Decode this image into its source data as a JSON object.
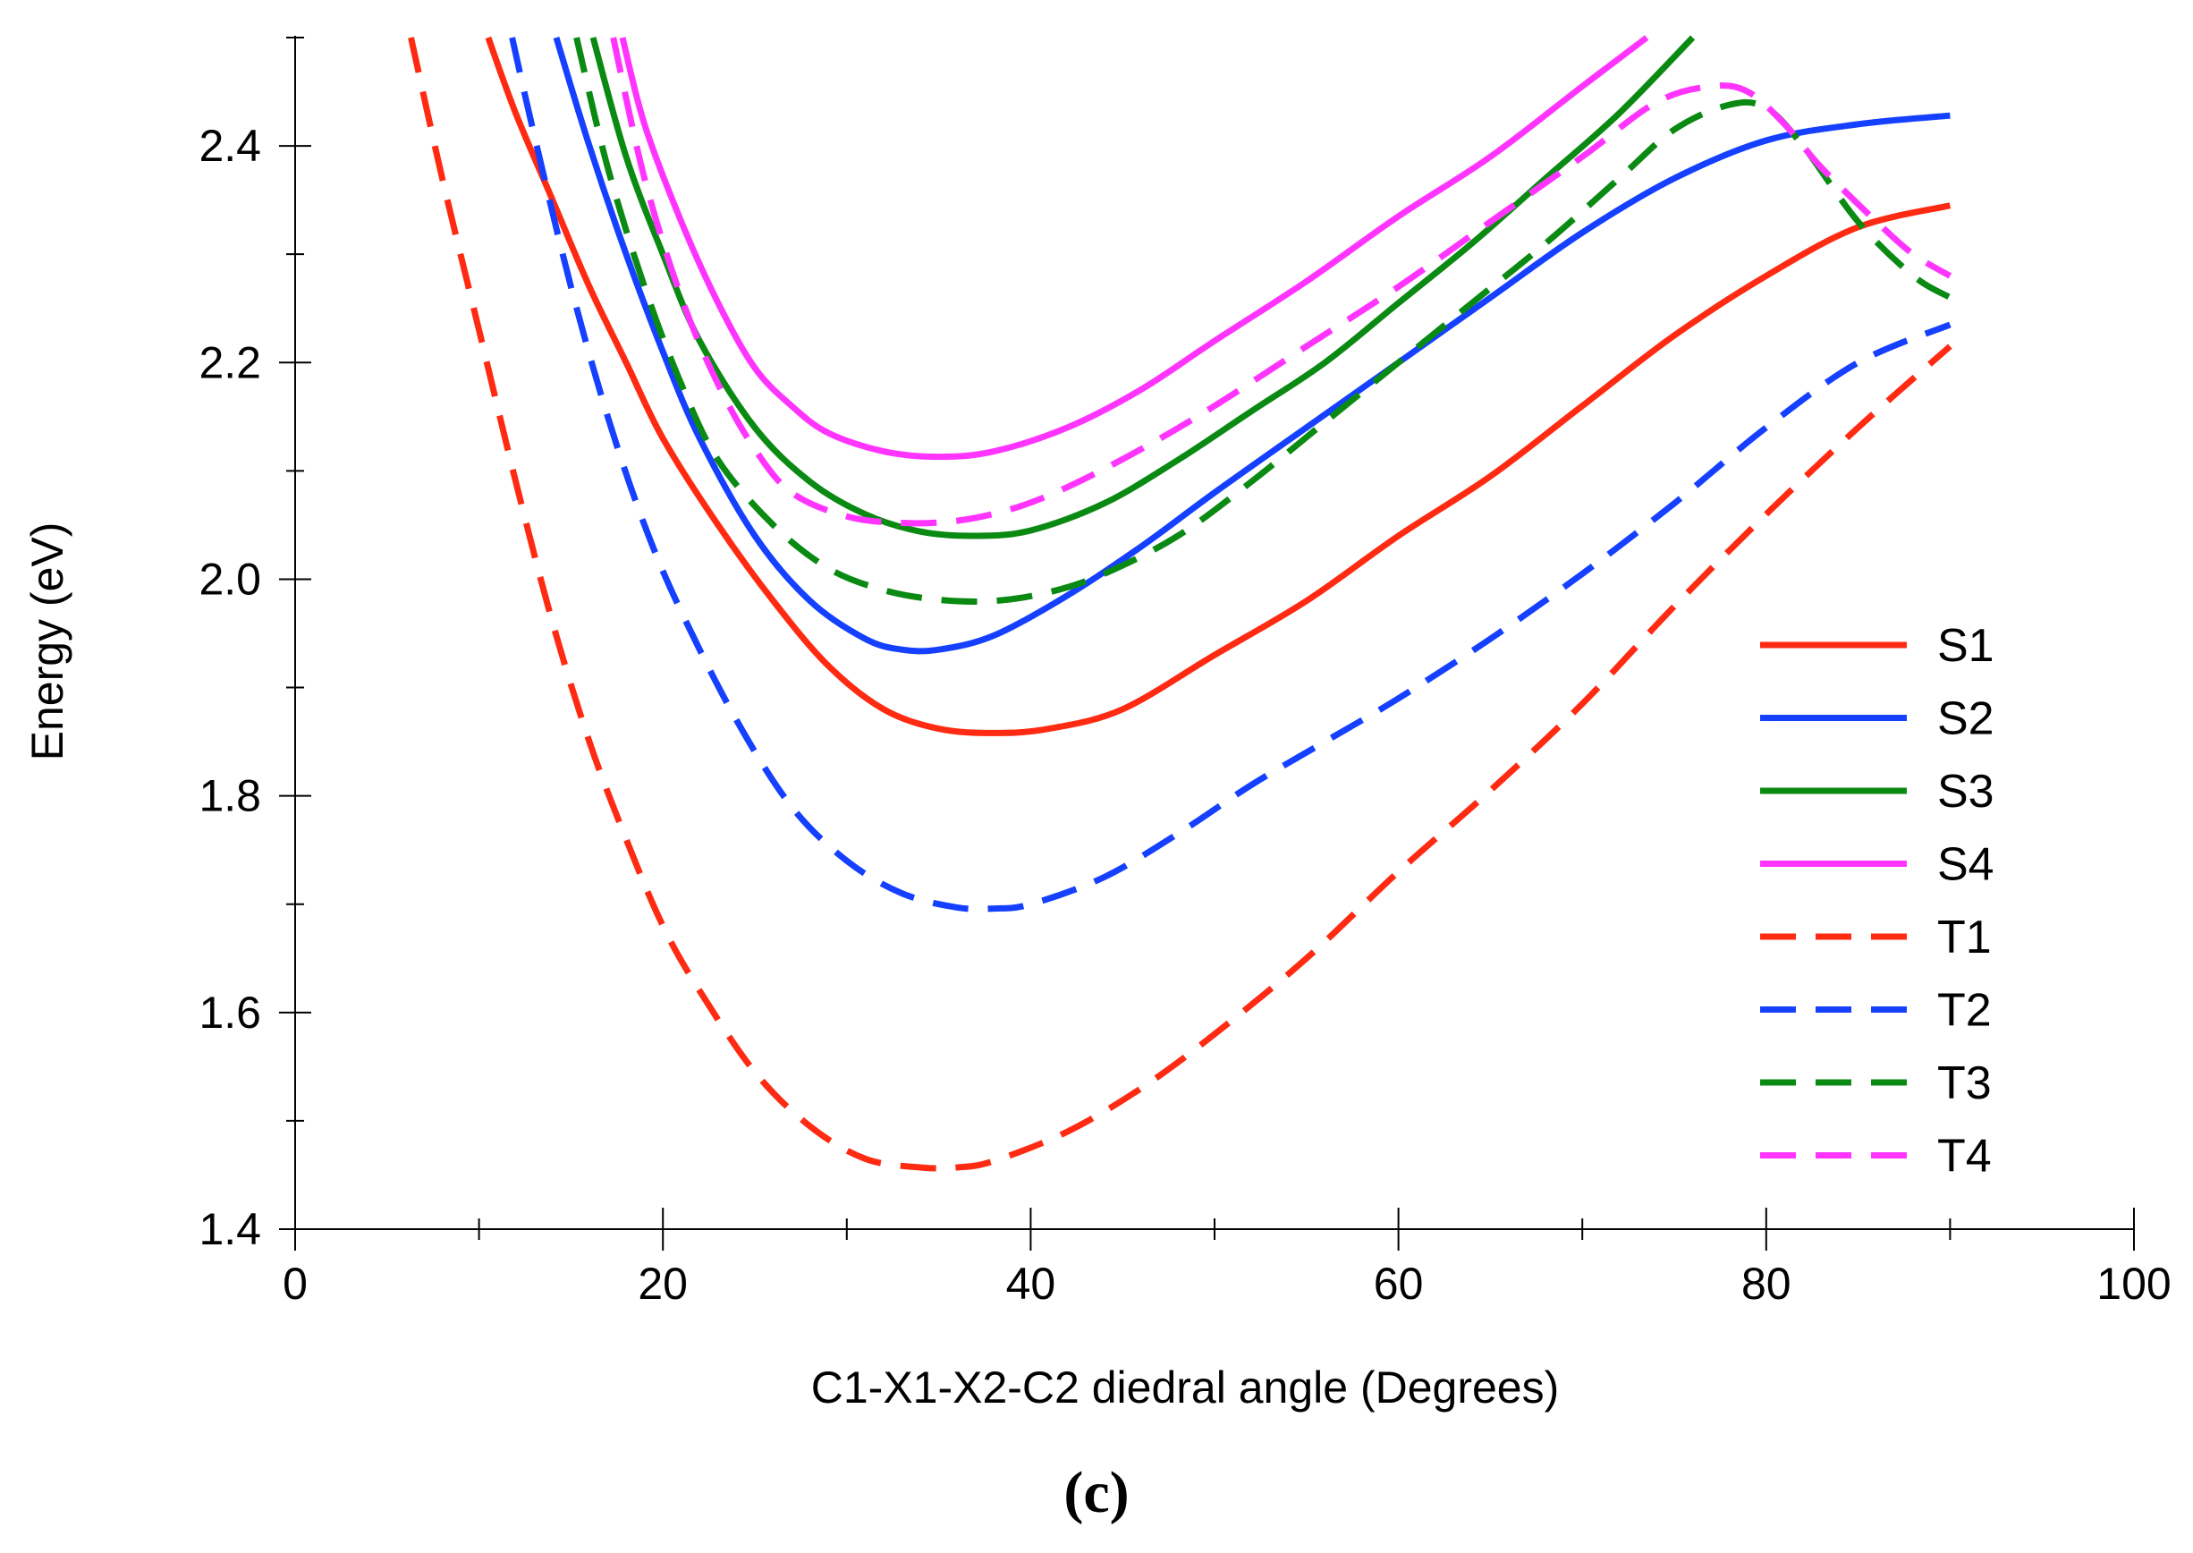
{
  "panel_label": "(c)",
  "chart_data": {
    "type": "line",
    "title": "",
    "xlabel": "C1-X1-X2-C2 diedral angle (Degrees)",
    "ylabel": "Energy (eV)",
    "xlim": [
      0,
      100
    ],
    "ylim": [
      1.4,
      2.5
    ],
    "x_ticks": [
      0,
      20,
      40,
      60,
      80,
      100
    ],
    "x_tick_labels": [
      "0",
      "20",
      "40",
      "60",
      "80",
      "100"
    ],
    "y_ticks": [
      1.4,
      1.6,
      1.8,
      2.0,
      2.2,
      2.4
    ],
    "y_tick_labels": [
      "1.4",
      "1.6",
      "1.8",
      "2.0",
      "2.2",
      "2.4"
    ],
    "grid": false,
    "legend_position": "bottom-right",
    "series": [
      {
        "name": "S1",
        "color": "#ff2a12",
        "style": "solid",
        "x": [
          10.5,
          12,
          14,
          16,
          18,
          20,
          23,
          26,
          29,
          32,
          35,
          38,
          41,
          45,
          50,
          55,
          60,
          65,
          70,
          75,
          80,
          85,
          90
        ],
        "y": [
          2.5,
          2.43,
          2.35,
          2.27,
          2.2,
          2.13,
          2.05,
          1.98,
          1.92,
          1.88,
          1.862,
          1.858,
          1.862,
          1.88,
          1.93,
          1.98,
          2.04,
          2.095,
          2.16,
          2.225,
          2.28,
          2.325,
          2.345
        ]
      },
      {
        "name": "S2",
        "color": "#1540ff",
        "style": "solid",
        "x": [
          14.2,
          16,
          18,
          20,
          22,
          25,
          28,
          31,
          33,
          35,
          38,
          42,
          46,
          50,
          55,
          60,
          65,
          70,
          75,
          80,
          85,
          90
        ],
        "y": [
          2.5,
          2.4,
          2.3,
          2.21,
          2.13,
          2.04,
          1.98,
          1.945,
          1.935,
          1.935,
          1.948,
          1.985,
          2.03,
          2.08,
          2.14,
          2.2,
          2.26,
          2.32,
          2.37,
          2.405,
          2.42,
          2.428
        ]
      },
      {
        "name": "S3",
        "color": "#0a8a12",
        "style": "solid",
        "x": [
          16.2,
          18,
          20,
          22,
          25,
          28,
          31,
          34,
          37,
          40,
          44,
          48,
          52,
          56,
          60,
          64,
          68,
          72,
          76
        ],
        "y": [
          2.5,
          2.39,
          2.3,
          2.22,
          2.14,
          2.09,
          2.06,
          2.044,
          2.04,
          2.045,
          2.07,
          2.11,
          2.155,
          2.2,
          2.255,
          2.31,
          2.37,
          2.43,
          2.5
        ]
      },
      {
        "name": "S4",
        "color": "#ff35ff",
        "style": "solid",
        "x": [
          17.8,
          19,
          21,
          23,
          25,
          27,
          29,
          32,
          35,
          38,
          42,
          46,
          50,
          55,
          60,
          65,
          70,
          73.5
        ],
        "y": [
          2.5,
          2.42,
          2.33,
          2.255,
          2.195,
          2.16,
          2.135,
          2.118,
          2.113,
          2.118,
          2.14,
          2.175,
          2.22,
          2.275,
          2.335,
          2.39,
          2.455,
          2.5
        ]
      },
      {
        "name": "T1",
        "color": "#ff2a12",
        "style": "dashed",
        "x": [
          6.3,
          8,
          10,
          12,
          14,
          16,
          18,
          20,
          22,
          25,
          28,
          31,
          34,
          36,
          38,
          42,
          46,
          50,
          55,
          60,
          65,
          70,
          75,
          80,
          85,
          90
        ],
        "y": [
          2.5,
          2.37,
          2.23,
          2.09,
          1.96,
          1.85,
          1.76,
          1.68,
          1.62,
          1.545,
          1.495,
          1.465,
          1.457,
          1.457,
          1.463,
          1.49,
          1.53,
          1.58,
          1.65,
          1.73,
          1.805,
          1.885,
          1.975,
          2.06,
          2.14,
          2.215
        ]
      },
      {
        "name": "T2",
        "color": "#1540ff",
        "style": "dashed",
        "x": [
          11.8,
          13,
          15,
          17,
          19,
          21,
          24,
          27,
          30,
          33,
          36,
          38,
          40,
          44,
          48,
          52,
          56,
          60,
          65,
          70,
          75,
          80,
          85,
          90
        ],
        "y": [
          2.5,
          2.41,
          2.27,
          2.15,
          2.05,
          1.97,
          1.87,
          1.79,
          1.74,
          1.71,
          1.697,
          1.696,
          1.7,
          1.725,
          1.765,
          1.81,
          1.85,
          1.89,
          1.945,
          2.005,
          2.07,
          2.14,
          2.2,
          2.235
        ]
      },
      {
        "name": "T3",
        "color": "#0a8a12",
        "style": "dashed",
        "x": [
          15.3,
          17,
          19,
          21,
          23,
          26,
          29,
          32,
          35,
          38,
          41,
          44,
          48,
          52,
          56,
          60,
          64,
          68,
          72,
          75,
          78,
          80,
          82,
          85,
          88,
          90
        ],
        "y": [
          2.5,
          2.38,
          2.27,
          2.18,
          2.11,
          2.05,
          2.01,
          1.99,
          1.981,
          1.98,
          1.988,
          2.005,
          2.04,
          2.09,
          2.145,
          2.2,
          2.255,
          2.31,
          2.37,
          2.415,
          2.438,
          2.435,
          2.4,
          2.33,
          2.28,
          2.26
        ]
      },
      {
        "name": "T4",
        "color": "#ff35ff",
        "style": "dashed",
        "x": [
          17.3,
          19,
          21,
          23,
          25,
          27,
          30,
          33,
          36,
          39,
          42,
          46,
          50,
          55,
          60,
          65,
          70,
          74,
          77,
          79,
          81,
          83,
          86,
          88,
          90
        ],
        "y": [
          2.5,
          2.37,
          2.26,
          2.18,
          2.12,
          2.08,
          2.058,
          2.052,
          2.054,
          2.065,
          2.085,
          2.12,
          2.16,
          2.215,
          2.27,
          2.33,
          2.39,
          2.44,
          2.455,
          2.45,
          2.42,
          2.38,
          2.33,
          2.3,
          2.28
        ]
      }
    ]
  }
}
